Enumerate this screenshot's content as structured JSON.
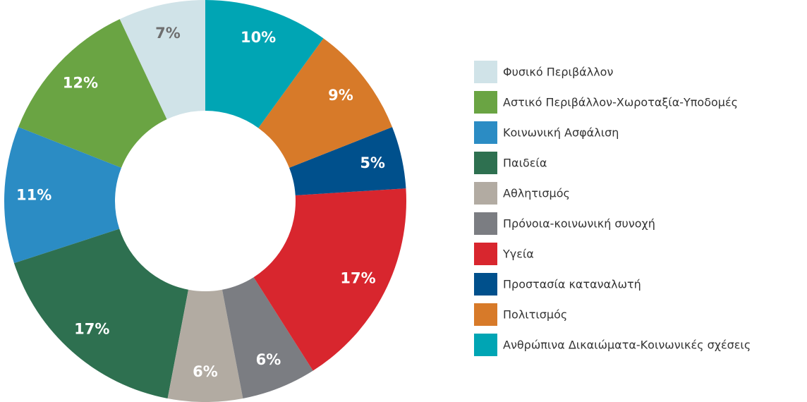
{
  "chart_data": {
    "type": "donut",
    "categories": [
      "Φυσικό Περιβάλλον",
      "Αστικό Περιβάλλον-Χωροταξία-Υποδομές",
      "Κοινωνική Ασφάλιση",
      "Παιδεία",
      "Αθλητισμός",
      "Πρόνοια-κοινωνική συνοχή",
      "Υγεία",
      "Προστασία καταναλωτή",
      "Πολιτισμός",
      "Ανθρώπινα Δικαιώματα-Κοινωνικές σχέσεις"
    ],
    "values": [
      7,
      12,
      11,
      17,
      6,
      6,
      17,
      5,
      9,
      10
    ],
    "value_labels": [
      "7%",
      "12%",
      "11%",
      "17%",
      "6%",
      "6%",
      "17%",
      "5%",
      "9%",
      "10%"
    ],
    "colors": [
      "#d0e3e8",
      "#6aa443",
      "#2b8cc4",
      "#2e7050",
      "#b2aba2",
      "#7b7d82",
      "#d8262e",
      "#00508c",
      "#d77a29",
      "#00a5b4"
    ],
    "legend": "right"
  }
}
